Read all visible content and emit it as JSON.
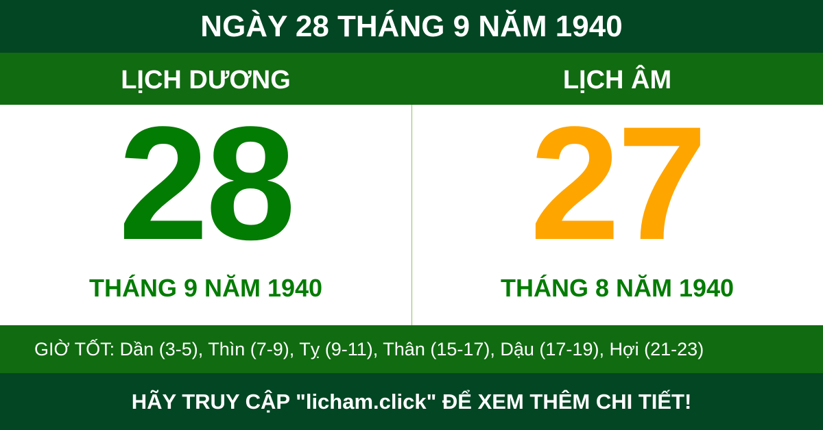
{
  "title": "NGÀY 28 THÁNG 9 NĂM 1940",
  "solar": {
    "header": "LỊCH DƯƠNG",
    "day": "28",
    "month_year": "THÁNG 9 NĂM 1940"
  },
  "lunar": {
    "header": "LỊCH ÂM",
    "day": "27",
    "month_year": "THÁNG 8 NĂM 1940"
  },
  "good_hours": "GIỜ TỐT: Dần (3-5), Thìn (7-9), Tỵ (9-11), Thân (15-17), Dậu (17-19), Hợi (21-23)",
  "footer": "HÃY TRUY CẬP \"licham.click\" ĐỂ XEM THÊM CHI TIẾT!",
  "colors": {
    "dark_green": "#034623",
    "green": "#116b11",
    "solar_day": "#037c03",
    "lunar_day": "#ffa500"
  }
}
